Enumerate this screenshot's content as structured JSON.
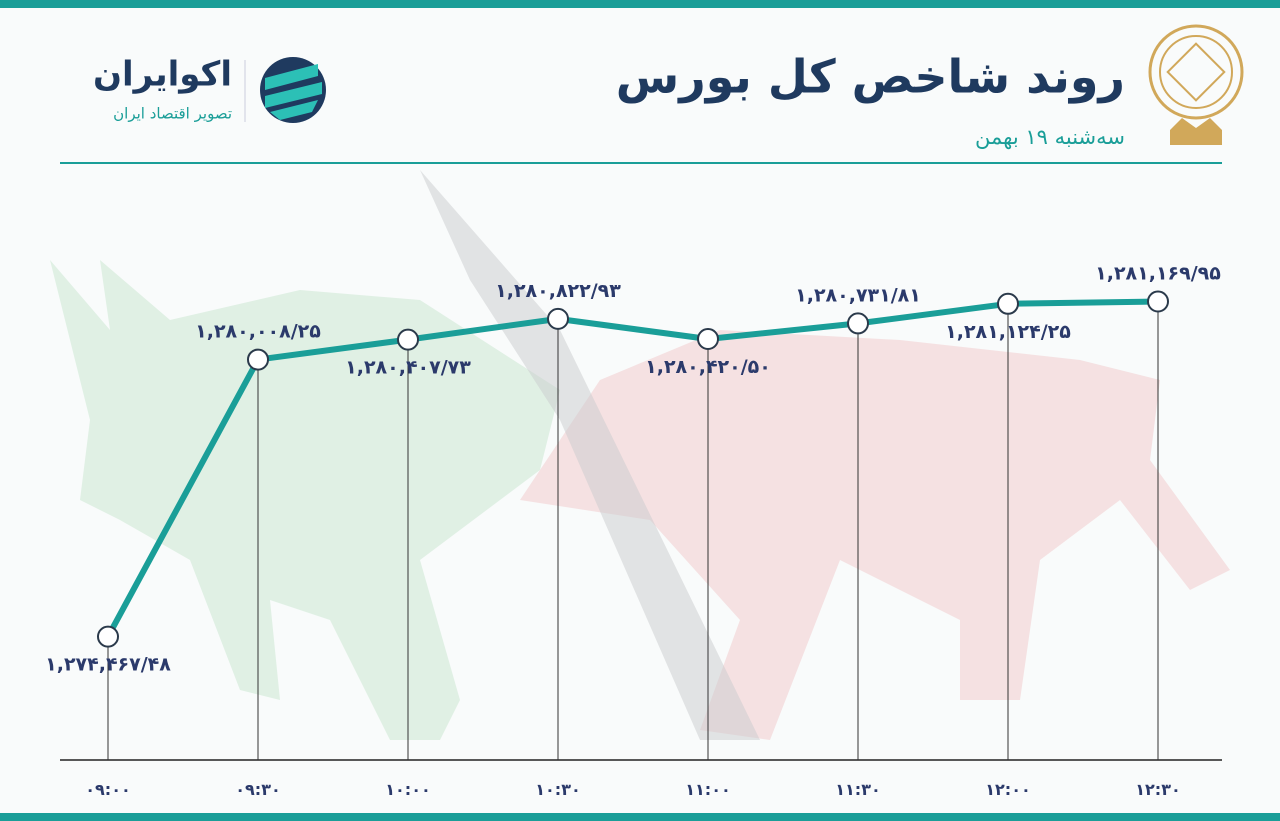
{
  "brand": {
    "name": "اکوایران",
    "tagline": "تصویر اقتصاد ایران"
  },
  "chart_data": {
    "type": "line",
    "title": "روند شاخص کل بورس",
    "subtitle": "سه‌شنبه ۱۹ بهمن",
    "categories": [
      "۰۹:۰۰",
      "۰۹:۳۰",
      "۱۰:۰۰",
      "۱۰:۳۰",
      "۱۱:۰۰",
      "۱۱:۳۰",
      "۱۲:۰۰",
      "۱۲:۳۰"
    ],
    "values": [
      1274467.48,
      1280008.25,
      1280407.73,
      1280822.93,
      1280420.5,
      1280731.81,
      1281124.25,
      1281169.95
    ],
    "value_labels": [
      "۱,۲۷۴,۴۶۷/۴۸",
      "۱,۲۸۰,۰۰۸/۲۵",
      "۱,۲۸۰,۴۰۷/۷۳",
      "۱,۲۸۰,۸۲۲/۹۳",
      "۱,۲۸۰,۴۲۰/۵۰",
      "۱,۲۸۰,۷۳۱/۸۱",
      "۱,۲۸۱,۱۲۴/۲۵",
      "۱,۲۸۱,۱۶۹/۹۵"
    ],
    "color": "#1a9e98",
    "ylim": [
      1272000,
      1282000
    ]
  }
}
